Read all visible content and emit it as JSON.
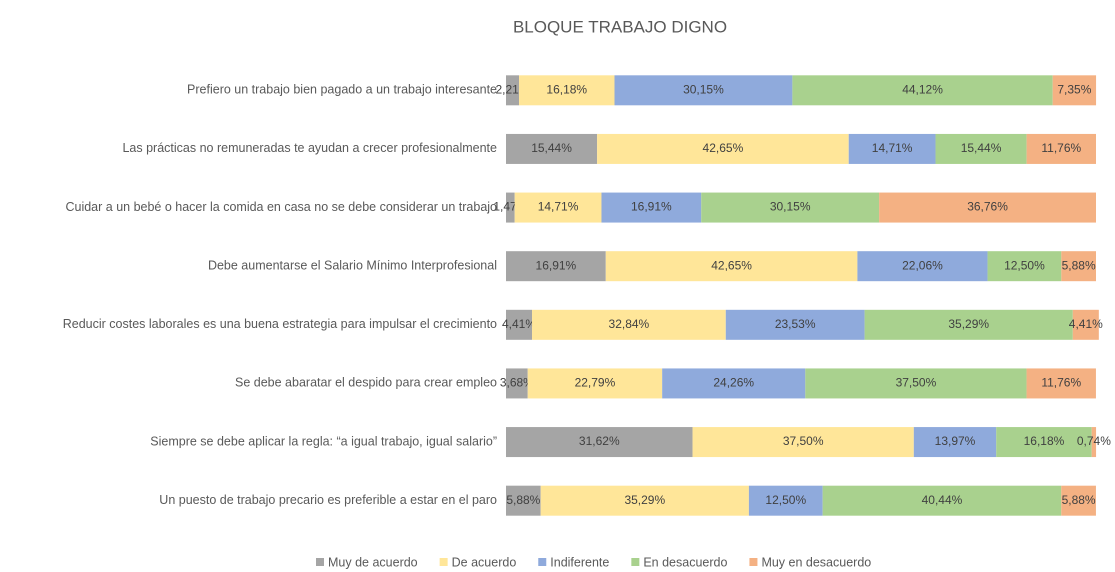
{
  "chart_data": {
    "type": "stacked-barh",
    "title": "BLOQUE TRABAJO DIGNO",
    "categories": [
      "Prefiero un trabajo bien pagado a un trabajo interesante",
      "Las prácticas no remuneradas te ayudan a crecer profesionalmente",
      "Cuidar a un bebé o hacer la comida en casa no se debe considerar un trabajo",
      "Debe aumentarse el Salario Mínimo Interprofesional",
      "Reducir costes laborales es una buena estrategia para impulsar el crecimiento",
      "Se debe abaratar el despido para crear empleo",
      "Siempre se debe aplicar la regla: “a igual trabajo, igual salario”",
      "Un puesto de trabajo precario es preferible a estar en el paro"
    ],
    "xlim": [
      0,
      100
    ],
    "legend": "bottom",
    "series": [
      {
        "name": "Muy de acuerdo",
        "color": "#a5a5a5",
        "values": [
          2.21,
          15.44,
          1.47,
          16.91,
          4.41,
          3.68,
          31.62,
          5.88
        ],
        "value_labels": [
          "2,21%",
          "15,44%",
          "1,47%",
          "16,91%",
          "4,41%",
          "3,68%",
          "31,62%",
          "5,88%"
        ]
      },
      {
        "name": "De acuerdo",
        "color": "#ffe699",
        "values": [
          16.18,
          42.65,
          14.71,
          42.65,
          32.84,
          22.79,
          37.5,
          35.29
        ],
        "value_labels": [
          "16,18%",
          "42,65%",
          "14,71%",
          "42,65%",
          "32,84%",
          "22,79%",
          "37,50%",
          "35,29%"
        ]
      },
      {
        "name": "Indiferente",
        "color": "#8faadc",
        "values": [
          30.15,
          14.71,
          16.91,
          22.06,
          23.53,
          24.26,
          13.97,
          12.5
        ],
        "value_labels": [
          "30,15%",
          "14,71%",
          "16,91%",
          "22,06%",
          "23,53%",
          "24,26%",
          "13,97%",
          "12,50%"
        ]
      },
      {
        "name": "En desacuerdo",
        "color": "#a9d18e",
        "values": [
          44.12,
          15.44,
          30.15,
          12.5,
          35.29,
          37.5,
          16.18,
          40.44
        ],
        "value_labels": [
          "44,12%",
          "15,44%",
          "30,15%",
          "12,50%",
          "35,29%",
          "37,50%",
          "16,18%",
          "40,44%"
        ]
      },
      {
        "name": "Muy en desacuerdo",
        "color": "#f4b183",
        "values": [
          7.35,
          11.76,
          36.76,
          5.88,
          4.41,
          11.76,
          0.74,
          5.88
        ],
        "value_labels": [
          "7,35%",
          "11,76%",
          "36,76%",
          "5,88%",
          "4,41%",
          "11,76%",
          "0,74%",
          "5,88%"
        ]
      }
    ]
  }
}
